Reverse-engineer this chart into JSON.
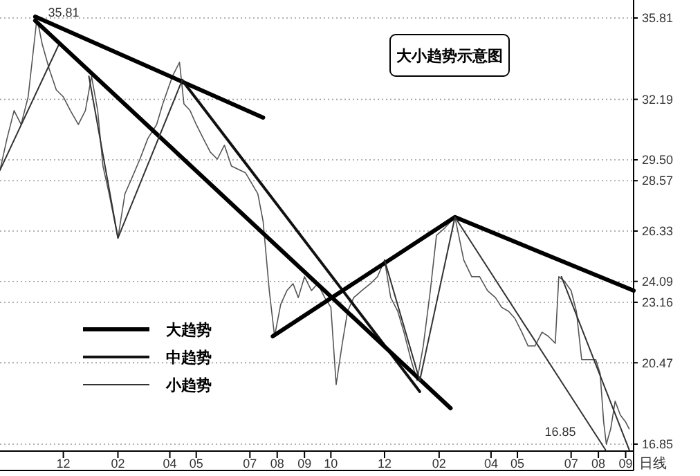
{
  "chart_data": {
    "type": "line",
    "title": "大小趋势示意图",
    "xlim": [
      "2009-09-20",
      "2011-09-10"
    ],
    "ylim": [
      16.54,
      36.61
    ],
    "xticks": [
      {
        "value": "2009-12-01",
        "label": "12"
      },
      {
        "value": "2010-02-01",
        "label": "02"
      },
      {
        "value": "2010-04-01",
        "label": "04"
      },
      {
        "value": "2010-05-01",
        "label": "05"
      },
      {
        "value": "2010-07-01",
        "label": "07"
      },
      {
        "value": "2010-08-01",
        "label": "08"
      },
      {
        "value": "2010-09-01",
        "label": "09"
      },
      {
        "value": "2010-10-01",
        "label": "10"
      },
      {
        "value": "2010-12-01",
        "label": "12"
      },
      {
        "value": "2011-02-01",
        "label": "02"
      },
      {
        "value": "2011-04-01",
        "label": "04"
      },
      {
        "value": "2011-05-01",
        "label": "05"
      },
      {
        "value": "2011-07-01",
        "label": "07"
      },
      {
        "value": "2011-08-01",
        "label": "08"
      },
      {
        "value": "2011-09-01",
        "label": "09"
      }
    ],
    "yticks": [
      16.85,
      20.47,
      23.16,
      24.09,
      26.33,
      {
        "value": 28.57,
        "label": "28.57"
      },
      {
        "value": 29.5,
        "label": "29.50"
      },
      32.19,
      35.81
    ],
    "grid": "y",
    "legend": "bottom left",
    "marker": "none",
    "line_style": "solid",
    "annotations": [
      {
        "text": "35.81",
        "x": "2009-11-01",
        "y": 35.81
      },
      {
        "text": "16.85",
        "x": "2011-08-10",
        "y": 16.85
      },
      "日线"
    ],
    "series": [
      {
        "color": "#555555",
        "x": [
          "2009-09-20",
          "2009-09-28",
          "2009-10-06",
          "2009-10-14",
          "2009-10-22",
          "2009-11-01",
          "2009-11-07",
          "2009-11-15",
          "2009-11-23",
          "2009-12-01",
          "2009-12-09",
          "2009-12-18",
          "2009-12-26",
          "2010-01-02",
          "2010-01-09",
          "2010-01-15",
          "2010-01-22",
          "2010-02-01",
          "2010-02-09",
          "2010-02-16",
          "2010-02-26",
          "2010-03-07",
          "2010-03-17",
          "2010-03-24",
          "2010-04-04",
          "2010-04-12",
          "2010-04-17",
          "2010-04-24",
          "2010-05-01",
          "2010-05-09",
          "2010-05-17",
          "2010-05-25",
          "2010-06-02",
          "2010-06-10",
          "2010-06-26",
          "2010-07-10",
          "2010-07-16",
          "2010-07-23",
          "2010-07-29",
          "2010-08-05",
          "2010-08-12",
          "2010-08-19",
          "2010-08-25",
          "2010-09-01",
          "2010-09-09",
          "2010-09-16",
          "2010-09-24",
          "2010-10-01",
          "2010-10-07",
          "2010-10-14",
          "2010-10-20",
          "2010-10-27",
          "2010-11-05",
          "2010-11-15",
          "2010-11-23",
          "2010-12-01",
          "2010-12-08",
          "2010-12-16",
          "2010-12-23",
          "2010-12-31",
          "2011-01-07",
          "2011-01-14",
          "2011-01-22",
          "2011-01-29",
          "2011-02-07",
          "2011-02-19",
          "2011-03-01",
          "2011-03-10",
          "2011-03-19",
          "2011-03-28",
          "2011-04-06",
          "2011-04-13",
          "2011-04-21",
          "2011-04-28",
          "2011-05-06",
          "2011-05-13",
          "2011-05-21",
          "2011-05-29",
          "2011-06-05",
          "2011-06-13",
          "2011-06-17",
          "2011-06-23",
          "2011-07-01",
          "2011-07-07",
          "2011-07-13",
          "2011-07-21",
          "2011-07-29",
          "2011-08-03",
          "2011-08-07",
          "2011-08-10",
          "2011-08-15",
          "2011-08-20",
          "2011-08-26",
          "2011-09-01",
          "2011-09-05"
        ],
        "values": [
          29.04,
          30.45,
          31.69,
          31.07,
          32.3,
          35.81,
          34.64,
          33.53,
          32.61,
          32.3,
          31.69,
          31.07,
          31.69,
          33.22,
          31.69,
          29.22,
          27.99,
          26.02,
          27.99,
          28.61,
          29.53,
          30.45,
          31.07,
          31.99,
          33.22,
          33.84,
          31.99,
          31.69,
          31.07,
          30.45,
          29.84,
          29.53,
          30.15,
          29.22,
          28.92,
          27.99,
          26.76,
          23.68,
          21.65,
          23.07,
          23.68,
          23.99,
          23.37,
          24.3,
          23.68,
          23.99,
          23.37,
          22.94,
          19.5,
          21.34,
          22.76,
          23.37,
          23.68,
          23.99,
          24.3,
          25.04,
          23.37,
          22.76,
          21.83,
          20.61,
          19.68,
          21.22,
          23.68,
          26.14,
          26.45,
          26.95,
          25.04,
          24.3,
          24.3,
          23.68,
          23.37,
          22.94,
          22.76,
          22.45,
          21.83,
          21.22,
          21.22,
          21.83,
          21.65,
          21.34,
          24.3,
          24.11,
          23.68,
          22.76,
          20.61,
          20.61,
          20.61,
          19.99,
          17.83,
          16.85,
          17.53,
          18.76,
          18.14,
          17.83,
          17.53
        ]
      },
      {
        "name": "大趋势",
        "color": "#000000",
        "x": [
          "2009-10-30",
          "2010-07-16"
        ],
        "values": [
          35.87,
          31.38
        ]
      },
      {
        "name": "中趋势",
        "color": "#111111",
        "x": [
          "2010-04-15",
          "2011-01-10"
        ],
        "values": [
          33.04,
          19.19
        ]
      },
      {
        "name": "小趋势",
        "color": "#333333",
        "x": [
          "2009-09-20",
          "2009-11-26"
        ],
        "values": [
          29.04,
          34.64
        ]
      },
      {
        "color": "#000000",
        "x": [
          "2010-07-27",
          "2011-02-19",
          "2011-09-10"
        ],
        "values": [
          21.65,
          26.95,
          23.68
        ]
      },
      {
        "color": "#000000",
        "x": [
          "2009-10-30",
          "2011-02-14"
        ],
        "values": [
          35.69,
          18.45
        ]
      },
      {
        "color": "#333333",
        "x": [
          "2009-12-30",
          "2010-02-01",
          "2010-04-15"
        ],
        "values": [
          33.22,
          26.02,
          33.04
        ]
      },
      {
        "color": "#333333",
        "x": [
          "2010-12-01",
          "2011-01-10",
          "2011-02-19",
          "2011-08-09"
        ],
        "values": [
          25.04,
          19.68,
          26.95,
          16.6
        ]
      },
      {
        "color": "#333333",
        "x": [
          "2011-06-20",
          "2011-09-05"
        ],
        "values": [
          24.3,
          16.6
        ]
      }
    ]
  }
}
